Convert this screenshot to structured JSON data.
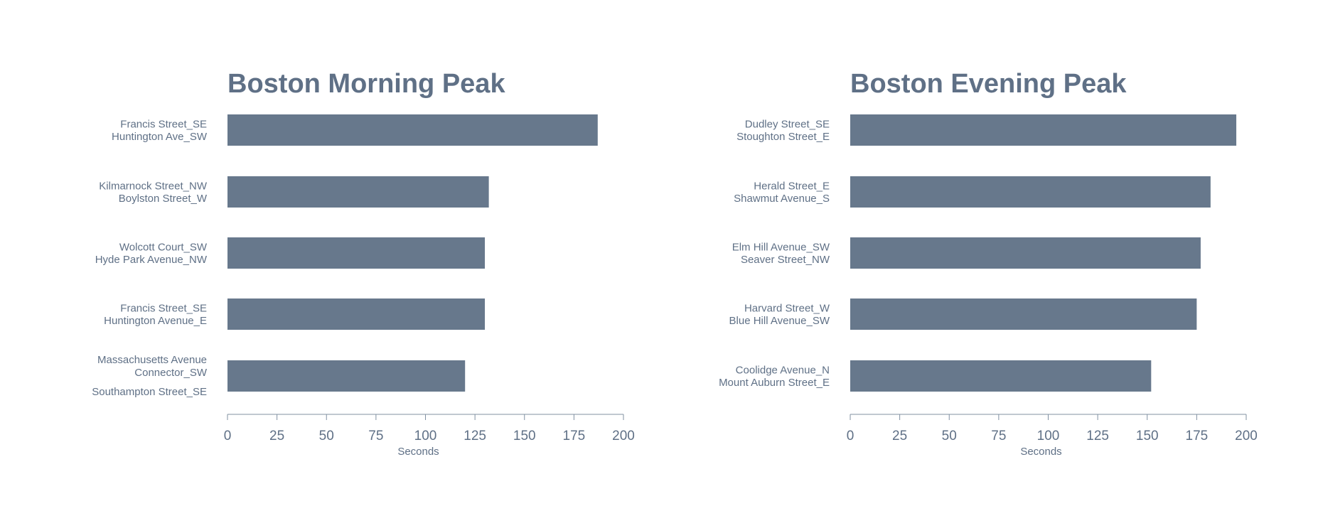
{
  "colors": {
    "bar": "#67788c",
    "text": "#5f7086",
    "axis": "#8090a2"
  },
  "chart_data": [
    {
      "type": "bar",
      "orientation": "horizontal",
      "title": "Boston Morning Peak",
      "xlabel": "Seconds",
      "xlim": [
        0,
        200
      ],
      "xticks": [
        0,
        25,
        50,
        75,
        100,
        125,
        150,
        175,
        200
      ],
      "grid": false,
      "categories": [
        [
          "Francis Street_SE",
          "Huntington Ave_SW"
        ],
        [
          "Kilmarnock Street_NW",
          "Boylston Street_W"
        ],
        [
          "Wolcott Court_SW",
          "Hyde Park Avenue_NW"
        ],
        [
          "Francis Street_SE",
          "Huntington Avenue_E"
        ],
        [
          "Massachusetts Avenue",
          "Connector_SW",
          "Southampton Street_SE"
        ]
      ],
      "values": [
        187,
        132,
        130,
        130,
        120
      ]
    },
    {
      "type": "bar",
      "orientation": "horizontal",
      "title": "Boston Evening Peak",
      "xlabel": "Seconds",
      "xlim": [
        0,
        200
      ],
      "xticks": [
        0,
        25,
        50,
        75,
        100,
        125,
        150,
        175,
        200
      ],
      "grid": false,
      "categories": [
        [
          "Dudley Street_SE",
          "Stoughton Street_E"
        ],
        [
          "Herald Street_E",
          "Shawmut Avenue_S"
        ],
        [
          "Elm Hill Avenue_SW",
          "Seaver Street_NW"
        ],
        [
          "Harvard Street_W",
          "Blue Hill Avenue_SW"
        ],
        [
          "Coolidge Avenue_N",
          "Mount Auburn Street_E"
        ]
      ],
      "values": [
        195,
        182,
        177,
        175,
        152
      ]
    }
  ]
}
